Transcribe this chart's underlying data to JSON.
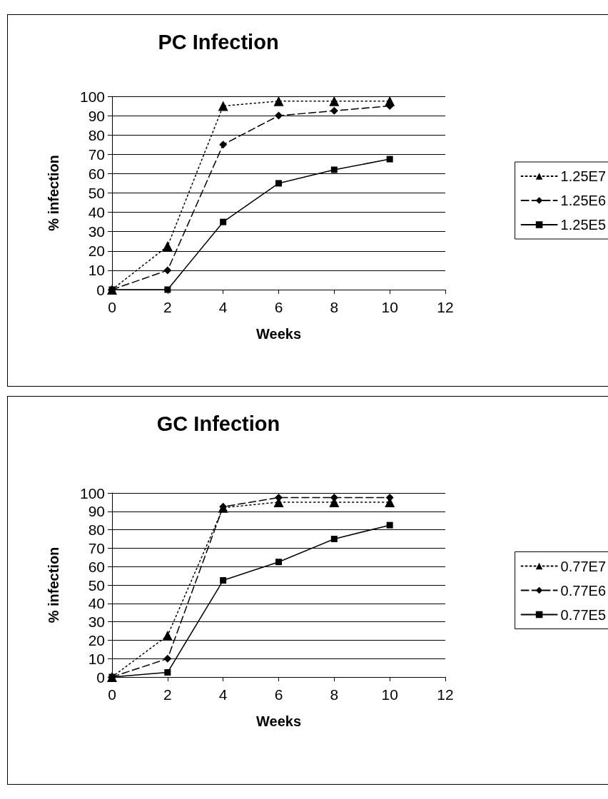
{
  "chart_data": [
    {
      "type": "line",
      "title": "PC Infection",
      "xlabel": "Weeks",
      "ylabel": "% infection",
      "x": [
        0,
        2,
        4,
        6,
        8,
        10
      ],
      "xlim": [
        0,
        12
      ],
      "xticks": [
        0,
        2,
        4,
        6,
        8,
        10,
        12
      ],
      "ylim": [
        0,
        100
      ],
      "yticks": [
        0,
        10,
        20,
        30,
        40,
        50,
        60,
        70,
        80,
        90,
        100
      ],
      "grid": "y",
      "legend": "right",
      "series": [
        {
          "name": "1.25E7",
          "color": "#000000",
          "marker": "triangle",
          "line_style": "dotted",
          "values": [
            0,
            22.5,
            95,
            97.5,
            97.5,
            97.5
          ]
        },
        {
          "name": "1.25E6",
          "color": "#000000",
          "marker": "diamond",
          "line_style": "dashed",
          "values": [
            0,
            10,
            75,
            90,
            92.5,
            95
          ]
        },
        {
          "name": "1.25E5",
          "color": "#000000",
          "marker": "square",
          "line_style": "solid",
          "values": [
            0,
            0,
            35,
            55,
            62,
            67.5
          ]
        }
      ]
    },
    {
      "type": "line",
      "title": "GC Infection",
      "xlabel": "Weeks",
      "ylabel": "% infection",
      "x": [
        0,
        2,
        4,
        6,
        8,
        10
      ],
      "xlim": [
        0,
        12
      ],
      "xticks": [
        0,
        2,
        4,
        6,
        8,
        10,
        12
      ],
      "ylim": [
        0,
        100
      ],
      "yticks": [
        0,
        10,
        20,
        30,
        40,
        50,
        60,
        70,
        80,
        90,
        100
      ],
      "grid": "y",
      "legend": "right",
      "series": [
        {
          "name": "0.77E7",
          "color": "#000000",
          "marker": "triangle",
          "line_style": "dotted",
          "values": [
            0,
            22.5,
            92,
            95,
            95,
            95
          ]
        },
        {
          "name": "0.77E6",
          "color": "#000000",
          "marker": "diamond",
          "line_style": "dashed",
          "values": [
            0,
            10,
            92.5,
            97.5,
            97.5,
            97.5
          ]
        },
        {
          "name": "0.77E5",
          "color": "#000000",
          "marker": "square",
          "line_style": "solid",
          "values": [
            0,
            2.5,
            52.5,
            62.5,
            75,
            82.5
          ]
        }
      ]
    }
  ]
}
